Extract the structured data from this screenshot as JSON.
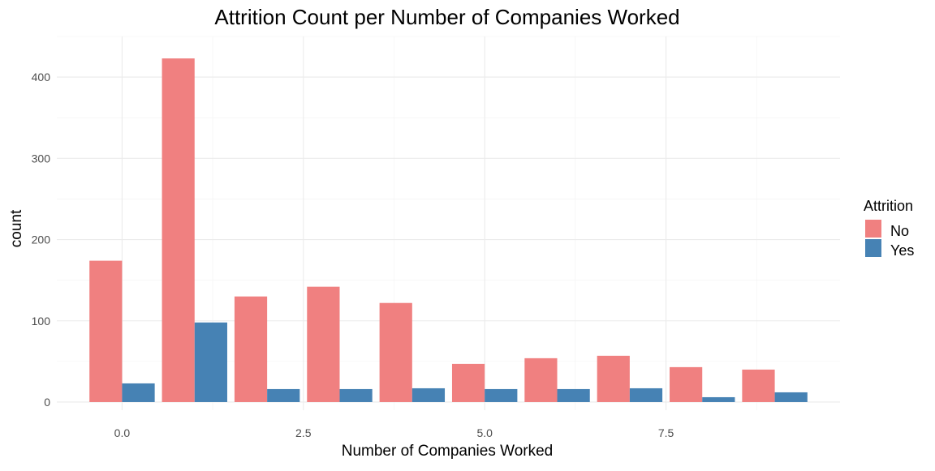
{
  "chart_data": {
    "type": "bar",
    "title": "Attrition Count per Number of Companies Worked",
    "xlabel": "Number of Companies Worked",
    "ylabel": "count",
    "x": [
      0,
      1,
      2,
      3,
      4,
      5,
      6,
      7,
      8,
      9
    ],
    "x_ticks": [
      0,
      2.5,
      5,
      7.5
    ],
    "x_tick_labels": [
      "0.0",
      "2.5",
      "5.0",
      "7.5"
    ],
    "xlim": [
      -0.9,
      9.9
    ],
    "y_ticks": [
      0,
      100,
      200,
      300,
      400
    ],
    "y_tick_labels": [
      "0",
      "100",
      "200",
      "300",
      "400"
    ],
    "ylim": [
      -10,
      450
    ],
    "grid": true,
    "legend": {
      "title": "Attrition",
      "position": "right"
    },
    "series": [
      {
        "name": "No",
        "color": "#f08080",
        "values": [
          174,
          423,
          130,
          142,
          122,
          47,
          54,
          57,
          43,
          40
        ]
      },
      {
        "name": "Yes",
        "color": "#4682b4",
        "values": [
          23,
          98,
          16,
          16,
          17,
          16,
          16,
          17,
          6,
          12
        ]
      }
    ]
  }
}
